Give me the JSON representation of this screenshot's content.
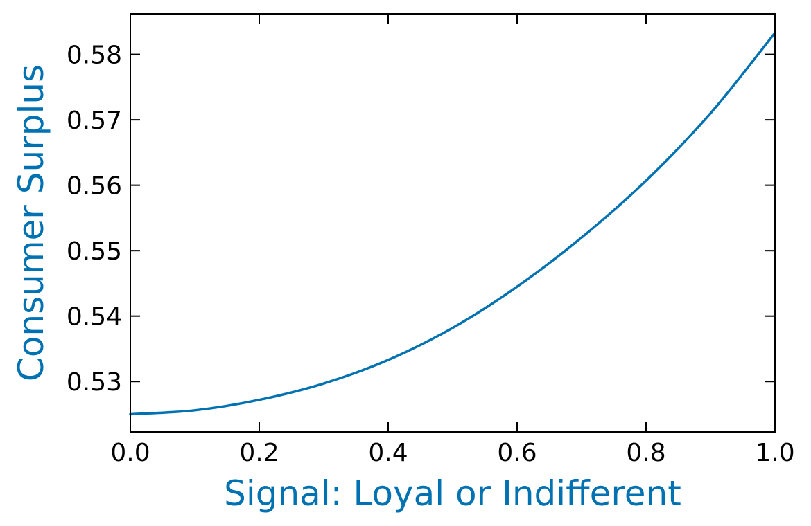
{
  "chart_data": {
    "type": "line",
    "title": "",
    "xlabel": "Signal: Loyal or Indifferent",
    "ylabel": "Consumer Surplus",
    "xlim": [
      0.0,
      1.0
    ],
    "ylim": [
      0.5223,
      0.5862
    ],
    "x_ticks": [
      0.0,
      0.2,
      0.4,
      0.6,
      0.8,
      1.0
    ],
    "x_tick_labels": [
      "0.0",
      "0.2",
      "0.4",
      "0.6",
      "0.8",
      "1.0"
    ],
    "y_ticks": [
      0.53,
      0.54,
      0.55,
      0.56,
      0.57,
      0.58
    ],
    "y_tick_labels": [
      "0.53",
      "0.54",
      "0.55",
      "0.56",
      "0.57",
      "0.58"
    ],
    "grid": false,
    "series": [
      {
        "color": "#0072B2",
        "x": [
          0.0,
          0.1,
          0.2,
          0.3,
          0.4,
          0.5,
          0.6,
          0.7,
          0.8,
          0.9,
          1.0
        ],
        "y": [
          0.525,
          0.5256,
          0.5272,
          0.5297,
          0.5333,
          0.5382,
          0.5445,
          0.552,
          0.5607,
          0.571,
          0.5833
        ]
      }
    ],
    "label_color": "#0072B2"
  }
}
